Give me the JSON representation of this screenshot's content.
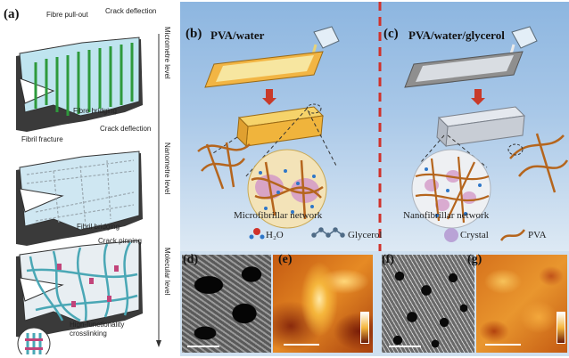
{
  "panel_a": {
    "letter": "(a)",
    "levels": [
      "Micrometre level",
      "Nanometre level",
      "Molecular level"
    ],
    "labels": {
      "fibre_pullout": "Fibre pull-out",
      "crack_deflection_1": "Crack deflection",
      "fibre_bridging": "Fibre bridging",
      "fibril_fracture": "Fibril fracture",
      "crack_deflection_2": "Crack deflection",
      "fibril_bridging": "Fibril bridging",
      "crack_pinning": "Crack pinning",
      "crosslinking": "High-functionality crosslinking"
    }
  },
  "panel_b": {
    "letter": "(b)",
    "title": "PVA/water",
    "network": "Microfibrillar network"
  },
  "panel_c": {
    "letter": "(c)",
    "title": "PVA/water/glycerol",
    "network": "Nanofibrillar network"
  },
  "legend": {
    "h2o": "H₂O",
    "glycerol": "Glycerol",
    "crystal": "Crystal",
    "pva": "PVA"
  },
  "micro": {
    "d": "(d)",
    "e": "(e)",
    "f": "(f)",
    "g": "(g)"
  },
  "colors": {
    "blue_bg": "#8fb8df",
    "divider": "#d0322b",
    "pva": "#b5651d",
    "crystal": "#b9a3d6",
    "fibre": "#2e9a3c"
  }
}
